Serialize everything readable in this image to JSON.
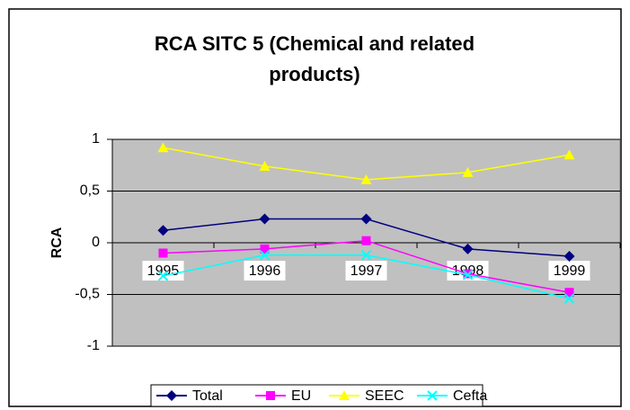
{
  "chart_data": {
    "type": "line",
    "title": "RCA SITC 5 (Chemical and related products)",
    "y_label": "RCA",
    "categories": [
      "1995",
      "1996",
      "1997",
      "1998",
      "1999"
    ],
    "series": [
      {
        "name": "Total",
        "color": "#000080",
        "marker": "diamond",
        "values": [
          0.12,
          0.23,
          0.23,
          -0.06,
          -0.13
        ]
      },
      {
        "name": "EU",
        "color": "#ff00ff",
        "marker": "square",
        "values": [
          -0.1,
          -0.06,
          0.02,
          -0.3,
          -0.48
        ]
      },
      {
        "name": "SEEC",
        "color": "#ffff00",
        "marker": "triangle",
        "values": [
          0.92,
          0.74,
          0.61,
          0.68,
          0.85
        ]
      },
      {
        "name": "Cefta",
        "color": "#00ffff",
        "marker": "x",
        "values": [
          -0.32,
          -0.12,
          -0.12,
          -0.31,
          -0.54
        ]
      }
    ],
    "ylim": [
      -1,
      1
    ],
    "yticks": [
      {
        "value": -1,
        "label": "-1"
      },
      {
        "value": -0.5,
        "label": "-0,5"
      },
      0,
      {
        "value": 0.5,
        "label": "0,5"
      },
      1
    ],
    "grid": true,
    "plot_background": "#c0c0c0",
    "legend": "bottom"
  }
}
